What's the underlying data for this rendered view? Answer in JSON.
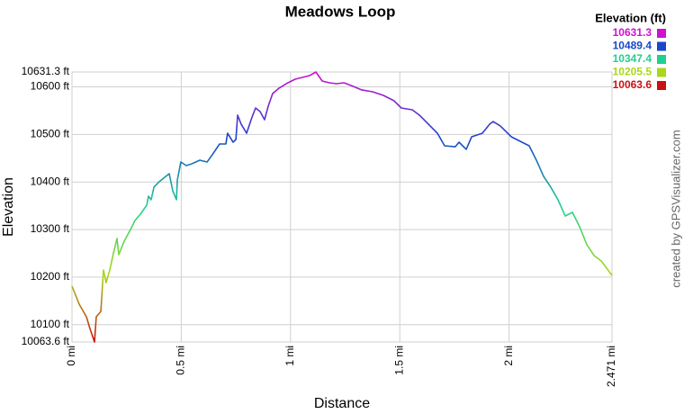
{
  "chart_data": {
    "type": "line",
    "title": "Meadows Loop",
    "x_label": "Distance",
    "y_label": "Elevation",
    "legend_title": "Elevation (ft)",
    "credit": "created by GPSVisualizer.com",
    "color_scale": [
      {
        "value": 10631.3,
        "color": "#d010d0"
      },
      {
        "value": 10489.4,
        "color": "#1848c8"
      },
      {
        "value": 10347.4,
        "color": "#20d090"
      },
      {
        "value": 10205.5,
        "color": "#a8d818"
      },
      {
        "value": 10063.6,
        "color": "#cc1010"
      }
    ],
    "x": [
      0,
      0.033,
      0.066,
      0.082,
      0.103,
      0.111,
      0.132,
      0.144,
      0.156,
      0.173,
      0.189,
      0.206,
      0.214,
      0.239,
      0.268,
      0.288,
      0.313,
      0.342,
      0.35,
      0.362,
      0.375,
      0.399,
      0.424,
      0.445,
      0.461,
      0.478,
      0.482,
      0.498,
      0.523,
      0.548,
      0.585,
      0.618,
      0.642,
      0.675,
      0.704,
      0.712,
      0.737,
      0.75,
      0.758,
      0.774,
      0.799,
      0.824,
      0.84,
      0.861,
      0.881,
      0.898,
      0.918,
      0.947,
      0.988,
      1.021,
      1.054,
      1.087,
      1.116,
      1.145,
      1.178,
      1.211,
      1.244,
      1.277,
      1.326,
      1.376,
      1.425,
      1.474,
      1.507,
      1.557,
      1.59,
      1.639,
      1.672,
      1.705,
      1.754,
      1.771,
      1.804,
      1.829,
      1.878,
      1.911,
      1.927,
      1.96,
      2.01,
      2.059,
      2.092,
      2.125,
      2.158,
      2.191,
      2.224,
      2.257,
      2.29,
      2.323,
      2.356,
      2.389,
      2.422,
      2.471
    ],
    "values": [
      10181.0,
      10143.1,
      10116.6,
      10092.0,
      10063.6,
      10116.6,
      10128.0,
      10215.0,
      10188.5,
      10215.0,
      10249.1,
      10281.2,
      10247.2,
      10275.6,
      10300.2,
      10319.1,
      10332.3,
      10351.3,
      10370.2,
      10362.6,
      10389.1,
      10400.5,
      10409.9,
      10417.5,
      10381.5,
      10362.6,
      10404.2,
      10442.1,
      10434.5,
      10438.3,
      10445.9,
      10442.1,
      10457.2,
      10479.9,
      10479.9,
      10502.6,
      10483.7,
      10489.4,
      10540.5,
      10521.6,
      10502.6,
      10536.7,
      10555.6,
      10548.0,
      10531.0,
      10559.4,
      10585.9,
      10597.2,
      10608.6,
      10616.2,
      10619.9,
      10623.7,
      10631.3,
      10612.4,
      10608.6,
      10606.7,
      10608.6,
      10602.9,
      10593.5,
      10589.7,
      10582.1,
      10570.7,
      10555.6,
      10551.8,
      10540.5,
      10517.8,
      10502.6,
      10476.1,
      10474.2,
      10483.7,
      10468.6,
      10495.1,
      10502.6,
      10521.6,
      10527.2,
      10517.8,
      10495.1,
      10483.7,
      10476.1,
      10445.9,
      10411.8,
      10389.1,
      10362.6,
      10328.5,
      10336.1,
      10305.8,
      10268.0,
      10245.3,
      10233.9,
      10203.7
    ],
    "xlim": [
      0,
      2.471
    ],
    "ylim": [
      10063.6,
      10631.3
    ],
    "xticks": [
      {
        "value": 0,
        "label": "0 mi"
      },
      {
        "value": 0.5,
        "label": "0.5 mi"
      },
      {
        "value": 1,
        "label": "1 mi"
      },
      {
        "value": 1.5,
        "label": "1.5 mi"
      },
      {
        "value": 2,
        "label": "2 mi"
      },
      {
        "value": 2.471,
        "label": "2.471 mi"
      }
    ],
    "yticks": [
      {
        "value": 10063.6,
        "label": "10063.6 ft"
      },
      {
        "value": 10100,
        "label": "10100 ft"
      },
      {
        "value": 10200,
        "label": "10200 ft"
      },
      {
        "value": 10300,
        "label": "10300 ft"
      },
      {
        "value": 10400,
        "label": "10400 ft"
      },
      {
        "value": 10500,
        "label": "10500 ft"
      },
      {
        "value": 10600,
        "label": "10600 ft"
      },
      {
        "value": 10631.3,
        "label": "10631.3 ft"
      }
    ],
    "grid": true
  }
}
